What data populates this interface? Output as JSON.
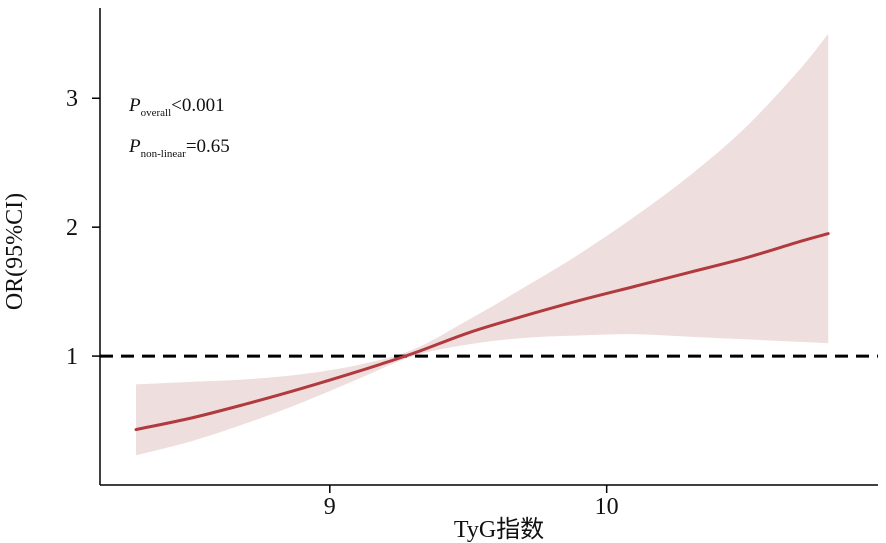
{
  "chart_data": {
    "type": "line",
    "xlabel": "TyG指数",
    "ylabel": "OR(95%CI)",
    "xlim": [
      8.17,
      10.98
    ],
    "ylim": [
      0.0,
      3.7
    ],
    "x_ticks": [
      9,
      10
    ],
    "x_tick_labels": [
      "9",
      "10"
    ],
    "y_ticks": [
      1,
      2,
      3
    ],
    "y_tick_labels": [
      "1",
      "2",
      "3"
    ],
    "reference_line": {
      "y": 1,
      "style": "dashed",
      "color": "#000000"
    },
    "colors": {
      "line": "#b03a3e",
      "band": "#efdede",
      "axis": "#000000"
    },
    "series": [
      {
        "type": "line",
        "x": [
          8.3,
          8.5,
          8.7,
          8.9,
          9.1,
          9.3,
          9.5,
          9.7,
          9.9,
          10.1,
          10.3,
          10.5,
          10.7,
          10.8
        ],
        "y": [
          0.43,
          0.52,
          0.63,
          0.75,
          0.88,
          1.02,
          1.18,
          1.31,
          1.43,
          1.54,
          1.65,
          1.76,
          1.89,
          1.95
        ]
      },
      {
        "type": "band",
        "x": [
          8.3,
          8.5,
          8.7,
          8.9,
          9.1,
          9.3,
          9.5,
          9.7,
          9.9,
          10.1,
          10.3,
          10.5,
          10.7,
          10.8
        ],
        "lower": [
          0.23,
          0.34,
          0.48,
          0.64,
          0.82,
          1.0,
          1.09,
          1.14,
          1.16,
          1.17,
          1.15,
          1.13,
          1.11,
          1.1
        ],
        "upper": [
          0.78,
          0.8,
          0.82,
          0.86,
          0.93,
          1.05,
          1.28,
          1.53,
          1.79,
          2.08,
          2.4,
          2.77,
          3.23,
          3.5
        ]
      }
    ],
    "annotations": [
      {
        "main": "P",
        "sub": "overall",
        "rest": "<0.001"
      },
      {
        "main": "P",
        "sub": "non-linear",
        "rest": "=0.65"
      }
    ]
  }
}
